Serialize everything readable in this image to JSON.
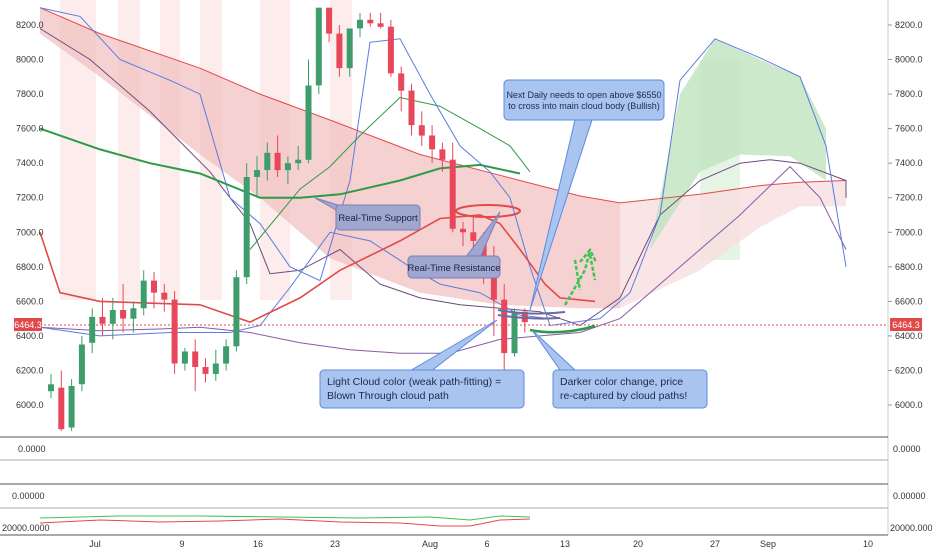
{
  "chart_data": {
    "type": "candlestick",
    "y_axis": {
      "min": 5850,
      "max": 8300,
      "ticks": [
        "8200.0",
        "8000.0",
        "7800.0",
        "7600.0",
        "7400.0",
        "7200.0",
        "7000.0",
        "6800.0",
        "6600.0",
        "6400.0",
        "6200.0",
        "6000.0"
      ]
    },
    "x_axis": {
      "labels": [
        "Jul",
        "9",
        "16",
        "23",
        "Aug",
        "6",
        "13",
        "20",
        "27",
        "Sep",
        "10"
      ]
    },
    "current_price": "6464.3",
    "candles": [
      {
        "o": 6080,
        "h": 6180,
        "l": 6040,
        "c": 6120
      },
      {
        "o": 6100,
        "h": 6200,
        "l": 5850,
        "c": 5860
      },
      {
        "o": 5870,
        "h": 6150,
        "l": 5850,
        "c": 6110
      },
      {
        "o": 6120,
        "h": 6400,
        "l": 6080,
        "c": 6350
      },
      {
        "o": 6360,
        "h": 6560,
        "l": 6300,
        "c": 6510
      },
      {
        "o": 6510,
        "h": 6620,
        "l": 6400,
        "c": 6470
      },
      {
        "o": 6470,
        "h": 6620,
        "l": 6380,
        "c": 6550
      },
      {
        "o": 6550,
        "h": 6700,
        "l": 6420,
        "c": 6500
      },
      {
        "o": 6500,
        "h": 6600,
        "l": 6420,
        "c": 6560
      },
      {
        "o": 6560,
        "h": 6780,
        "l": 6520,
        "c": 6720
      },
      {
        "o": 6720,
        "h": 6770,
        "l": 6560,
        "c": 6650
      },
      {
        "o": 6650,
        "h": 6700,
        "l": 6540,
        "c": 6610
      },
      {
        "o": 6610,
        "h": 6660,
        "l": 6180,
        "c": 6240
      },
      {
        "o": 6240,
        "h": 6330,
        "l": 6200,
        "c": 6310
      },
      {
        "o": 6310,
        "h": 6380,
        "l": 6080,
        "c": 6220
      },
      {
        "o": 6220,
        "h": 6270,
        "l": 6130,
        "c": 6180
      },
      {
        "o": 6180,
        "h": 6320,
        "l": 6140,
        "c": 6240
      },
      {
        "o": 6240,
        "h": 6380,
        "l": 6200,
        "c": 6340
      },
      {
        "o": 6340,
        "h": 6780,
        "l": 6310,
        "c": 6740
      },
      {
        "o": 6740,
        "h": 7400,
        "l": 6700,
        "c": 7320
      },
      {
        "o": 7320,
        "h": 7440,
        "l": 7200,
        "c": 7360
      },
      {
        "o": 7360,
        "h": 7520,
        "l": 7300,
        "c": 7460
      },
      {
        "o": 7460,
        "h": 7560,
        "l": 7320,
        "c": 7360
      },
      {
        "o": 7360,
        "h": 7440,
        "l": 7280,
        "c": 7400
      },
      {
        "o": 7400,
        "h": 7500,
        "l": 7360,
        "c": 7420
      },
      {
        "o": 7420,
        "h": 8000,
        "l": 7400,
        "c": 7850
      },
      {
        "o": 7850,
        "h": 8300,
        "l": 7800,
        "c": 8300
      },
      {
        "o": 8300,
        "h": 8300,
        "l": 8100,
        "c": 8150
      },
      {
        "o": 8150,
        "h": 8200,
        "l": 7900,
        "c": 7950
      },
      {
        "o": 7950,
        "h": 8180,
        "l": 7900,
        "c": 8180
      },
      {
        "o": 8180,
        "h": 8270,
        "l": 8130,
        "c": 8230
      },
      {
        "o": 8230,
        "h": 8270,
        "l": 8190,
        "c": 8210
      },
      {
        "o": 8210,
        "h": 8270,
        "l": 8180,
        "c": 8190
      },
      {
        "o": 8190,
        "h": 8230,
        "l": 7900,
        "c": 7920
      },
      {
        "o": 7920,
        "h": 7960,
        "l": 7700,
        "c": 7820
      },
      {
        "o": 7820,
        "h": 7860,
        "l": 7560,
        "c": 7620
      },
      {
        "o": 7620,
        "h": 7700,
        "l": 7500,
        "c": 7560
      },
      {
        "o": 7560,
        "h": 7620,
        "l": 7400,
        "c": 7480
      },
      {
        "o": 7480,
        "h": 7520,
        "l": 7350,
        "c": 7420
      },
      {
        "o": 7420,
        "h": 7520,
        "l": 7000,
        "c": 7020
      },
      {
        "o": 7020,
        "h": 7060,
        "l": 6920,
        "c": 7000
      },
      {
        "o": 7000,
        "h": 7100,
        "l": 6900,
        "c": 6950
      },
      {
        "o": 6950,
        "h": 7000,
        "l": 6700,
        "c": 6780
      },
      {
        "o": 6780,
        "h": 6920,
        "l": 6400,
        "c": 6610
      },
      {
        "o": 6610,
        "h": 6700,
        "l": 6160,
        "c": 6300
      },
      {
        "o": 6300,
        "h": 6560,
        "l": 6280,
        "c": 6540
      },
      {
        "o": 6540,
        "h": 6560,
        "l": 6420,
        "c": 6480
      }
    ],
    "overlays": {
      "cloud_red": {
        "upper": [
          [
            40,
            8300
          ],
          [
            100,
            8150
          ],
          [
            200,
            7950
          ],
          [
            260,
            7800
          ],
          [
            330,
            7650
          ],
          [
            420,
            7450
          ],
          [
            500,
            7330
          ],
          [
            580,
            7210
          ],
          [
            620,
            7170
          ]
        ],
        "lower": [
          [
            40,
            8150
          ],
          [
            100,
            7900
          ],
          [
            200,
            7450
          ],
          [
            260,
            7200
          ],
          [
            330,
            6850
          ],
          [
            420,
            6650
          ],
          [
            500,
            6580
          ],
          [
            580,
            6560
          ],
          [
            620,
            6560
          ]
        ]
      },
      "cloud_red_future": {
        "upper": [
          [
            620,
            7170
          ],
          [
            700,
            7220
          ],
          [
            760,
            7270
          ],
          [
            800,
            7290
          ],
          [
            846,
            7300
          ],
          [
            846,
            7000
          ]
        ],
        "lower": [
          [
            620,
            6560
          ],
          [
            700,
            6780
          ],
          [
            760,
            7030
          ],
          [
            800,
            7150
          ],
          [
            846,
            7150
          ]
        ]
      },
      "cloud_green": {
        "upper": [
          [
            650,
            6900
          ],
          [
            680,
            7800
          ],
          [
            715,
            8120
          ],
          [
            760,
            8000
          ],
          [
            800,
            7900
          ],
          [
            826,
            7600
          ]
        ],
        "lower": [
          [
            650,
            6900
          ],
          [
            700,
            7350
          ],
          [
            740,
            7450
          ],
          [
            790,
            7440
          ],
          [
            826,
            7300
          ]
        ]
      },
      "cross_line_red": [
        [
          40,
          7000
        ],
        [
          60,
          6650
        ],
        [
          100,
          6600
        ],
        [
          200,
          6580
        ],
        [
          250,
          6480
        ],
        [
          300,
          6620
        ],
        [
          340,
          6780
        ],
        [
          400,
          6950
        ],
        [
          440,
          7080
        ],
        [
          480,
          7100
        ],
        [
          500,
          7050
        ],
        [
          520,
          6900
        ],
        [
          545,
          6700
        ],
        [
          560,
          6620
        ],
        [
          595,
          6600
        ]
      ],
      "lead_green_thick": [
        [
          40,
          7600
        ],
        [
          100,
          7480
        ],
        [
          150,
          7400
        ],
        [
          200,
          7340
        ],
        [
          260,
          7200
        ],
        [
          300,
          7200
        ],
        [
          340,
          7220
        ],
        [
          400,
          7300
        ],
        [
          440,
          7370
        ],
        [
          480,
          7390
        ],
        [
          520,
          7340
        ]
      ],
      "lag_green_thin": [
        [
          250,
          6900
        ],
        [
          300,
          7250
        ],
        [
          330,
          7380
        ],
        [
          360,
          7560
        ],
        [
          400,
          7780
        ],
        [
          440,
          7730
        ],
        [
          480,
          7600
        ],
        [
          510,
          7500
        ],
        [
          530,
          7350
        ]
      ],
      "blue_band_upper": [
        [
          40,
          8300
        ],
        [
          80,
          8250
        ],
        [
          120,
          8000
        ],
        [
          170,
          7880
        ],
        [
          200,
          7800
        ],
        [
          230,
          7200
        ],
        [
          260,
          7050
        ],
        [
          290,
          6800
        ],
        [
          320,
          6720
        ],
        [
          350,
          7300
        ],
        [
          370,
          8100
        ],
        [
          400,
          8120
        ],
        [
          430,
          7800
        ],
        [
          460,
          7500
        ],
        [
          490,
          7350
        ],
        [
          510,
          7200
        ],
        [
          530,
          6800
        ]
      ],
      "blue_band_lower": [
        [
          40,
          6450
        ],
        [
          100,
          6400
        ],
        [
          170,
          6420
        ],
        [
          230,
          6420
        ],
        [
          260,
          6460
        ],
        [
          290,
          6680
        ],
        [
          330,
          7000
        ],
        [
          370,
          6950
        ],
        [
          410,
          6800
        ],
        [
          440,
          6700
        ],
        [
          480,
          6650
        ],
        [
          520,
          6520
        ],
        [
          550,
          6500
        ]
      ],
      "purple_line": [
        [
          40,
          8180
        ],
        [
          90,
          8000
        ],
        [
          150,
          7700
        ],
        [
          210,
          7350
        ],
        [
          250,
          7050
        ],
        [
          270,
          6760
        ],
        [
          300,
          6780
        ],
        [
          340,
          6900
        ],
        [
          380,
          6700
        ],
        [
          420,
          6620
        ],
        [
          460,
          6580
        ],
        [
          500,
          6560
        ],
        [
          540,
          6540
        ],
        [
          580,
          6460
        ],
        [
          620,
          6620
        ],
        [
          660,
          7100
        ],
        [
          700,
          7300
        ],
        [
          740,
          7400
        ],
        [
          770,
          7420
        ],
        [
          800,
          7400
        ],
        [
          846,
          7300
        ],
        [
          846,
          7200
        ]
      ],
      "purple_lower": [
        [
          40,
          6450
        ],
        [
          100,
          6430
        ],
        [
          160,
          6440
        ],
        [
          200,
          6450
        ],
        [
          250,
          6420
        ],
        [
          300,
          6360
        ],
        [
          350,
          6320
        ],
        [
          400,
          6300
        ],
        [
          450,
          6300
        ],
        [
          500,
          6380
        ],
        [
          540,
          6400
        ],
        [
          580,
          6420
        ],
        [
          620,
          6500
        ],
        [
          660,
          6700
        ],
        [
          700,
          6900
        ],
        [
          740,
          7100
        ],
        [
          790,
          7380
        ],
        [
          820,
          7200
        ],
        [
          846,
          6900
        ]
      ],
      "future_blue": [
        [
          530,
          6800
        ],
        [
          550,
          6460
        ],
        [
          600,
          6500
        ],
        [
          630,
          6650
        ],
        [
          660,
          7100
        ],
        [
          680,
          7880
        ],
        [
          715,
          8120
        ],
        [
          760,
          8010
        ],
        [
          800,
          7900
        ],
        [
          826,
          7500
        ],
        [
          846,
          6800
        ]
      ]
    },
    "annotations": {
      "next_daily": "Next Daily needs to open above $6550 to cross into main cloud body (Bullish)",
      "support": "Real-Time Support",
      "resistance": "Real-Time Resistance",
      "light_cloud": "Light Cloud color (weak path-fitting) = Blown Through cloud path",
      "darker_color": "Darker color change, price re-captured by cloud paths!"
    },
    "indicators": {
      "panel1_label": "0.0000",
      "panel2_label": "0.00000",
      "panel3_label": "20000.0000",
      "panel3_label_right": "20000.0000",
      "panel1_label_right": "0.0000",
      "panel2_label_right": "0.00000"
    },
    "colors": {
      "up": "#3e9d6b",
      "down": "#e8475b",
      "cloud_red": "#f3c2c2",
      "cloud_green": "#bfe3bf",
      "callout": "#a9c4ee",
      "callout_border": "#5b8be0",
      "callout_dark": "#9fa6d0",
      "price_line": "#e24a4a"
    }
  }
}
